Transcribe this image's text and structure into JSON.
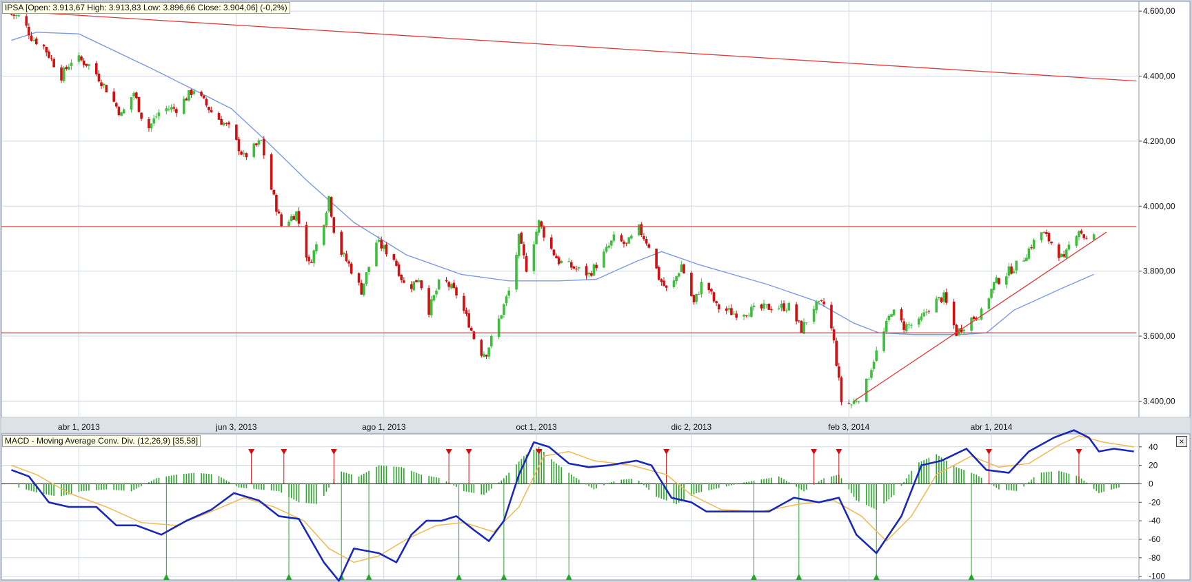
{
  "price_panel": {
    "label_text": "IPSA [Open: 3.913,67  High: 3.913,83  Low: 3.896,66  Close: 3.904,06] (-0,2%)"
  },
  "macd_panel": {
    "label_text": "MACD - Moving Average Conv. Div. (12,26,9) [35,58]",
    "close_symbol": "×"
  },
  "colors": {
    "up_candle": "#3dbf3d",
    "down_candle": "#d01010",
    "moving_average": "#7a9ae6",
    "trend_lines": "#e03a3a",
    "macd_line": "#1a28b8",
    "signal_line": "#f0b850",
    "histogram": "#2aa52a",
    "sell_marker": "#d01010",
    "buy_marker": "#22aa22",
    "grid": "#cfd6e3"
  },
  "chart_data": [
    {
      "type": "candlestick",
      "title": "IPSA",
      "y_axis_side": "right",
      "ylim": [
        3350,
        4630
      ],
      "y_ticks": [
        3400,
        3600,
        3800,
        4000,
        4200,
        4400,
        4600
      ],
      "y_tick_labels": [
        "3.400,00",
        "3.600,00",
        "3.800,00",
        "4.000,00",
        "4.200,00",
        "4.400,00",
        "4.600,00"
      ],
      "x_ticks": [
        {
          "date": "2013-04-01",
          "label": "abr 1, 2013"
        },
        {
          "date": "2013-06-03",
          "label": "jun 3, 2013"
        },
        {
          "date": "2013-08-01",
          "label": "ago 1, 2013"
        },
        {
          "date": "2013-10-01",
          "label": "oct 1, 2013"
        },
        {
          "date": "2013-12-02",
          "label": "dic 2, 2013"
        },
        {
          "date": "2014-02-03",
          "label": "feb 3, 2014"
        },
        {
          "date": "2014-04-01",
          "label": "abr 1, 2014"
        }
      ],
      "xlim": [
        "2013-03-01",
        "2014-05-30"
      ],
      "close_path": [
        [
          "2013-03-05",
          4590
        ],
        [
          "2013-03-09",
          4580
        ],
        [
          "2013-03-13",
          4520
        ],
        [
          "2013-03-18",
          4490
        ],
        [
          "2013-03-25",
          4400
        ],
        [
          "2013-03-30",
          4460
        ],
        [
          "2013-04-06",
          4430
        ],
        [
          "2013-04-12",
          4360
        ],
        [
          "2013-04-18",
          4280
        ],
        [
          "2013-04-23",
          4350
        ],
        [
          "2013-04-28",
          4230
        ],
        [
          "2013-05-04",
          4300
        ],
        [
          "2013-05-10",
          4300
        ],
        [
          "2013-05-17",
          4360
        ],
        [
          "2013-05-24",
          4290
        ],
        [
          "2013-05-31",
          4240
        ],
        [
          "2013-06-06",
          4150
        ],
        [
          "2013-06-13",
          4200
        ],
        [
          "2013-06-16",
          4080
        ],
        [
          "2013-06-21",
          3940
        ],
        [
          "2013-06-27",
          3980
        ],
        [
          "2013-07-02",
          3820
        ],
        [
          "2013-07-07",
          3920
        ],
        [
          "2013-07-10",
          4030
        ],
        [
          "2013-07-13",
          3880
        ],
        [
          "2013-07-18",
          3820
        ],
        [
          "2013-07-23",
          3740
        ],
        [
          "2013-07-29",
          3890
        ],
        [
          "2013-08-05",
          3840
        ],
        [
          "2013-08-10",
          3740
        ],
        [
          "2013-08-15",
          3780
        ],
        [
          "2013-08-19",
          3680
        ],
        [
          "2013-08-24",
          3780
        ],
        [
          "2013-08-30",
          3730
        ],
        [
          "2013-09-04",
          3640
        ],
        [
          "2013-09-08",
          3550
        ],
        [
          "2013-09-11",
          3550
        ],
        [
          "2013-09-16",
          3650
        ],
        [
          "2013-09-21",
          3760
        ],
        [
          "2013-09-24",
          3900
        ],
        [
          "2013-09-27",
          3810
        ],
        [
          "2013-10-02",
          3950
        ],
        [
          "2013-10-06",
          3880
        ],
        [
          "2013-10-10",
          3830
        ],
        [
          "2013-10-16",
          3810
        ],
        [
          "2013-10-22",
          3790
        ],
        [
          "2013-10-27",
          3840
        ],
        [
          "2013-11-01",
          3900
        ],
        [
          "2013-11-06",
          3880
        ],
        [
          "2013-11-11",
          3930
        ],
        [
          "2013-11-15",
          3880
        ],
        [
          "2013-11-19",
          3780
        ],
        [
          "2013-11-23",
          3730
        ],
        [
          "2013-11-28",
          3820
        ],
        [
          "2013-12-03",
          3700
        ],
        [
          "2013-12-07",
          3780
        ],
        [
          "2013-12-12",
          3690
        ],
        [
          "2013-12-19",
          3670
        ],
        [
          "2013-12-27",
          3680
        ],
        [
          "2014-01-03",
          3690
        ],
        [
          "2014-01-10",
          3690
        ],
        [
          "2014-01-15",
          3620
        ],
        [
          "2014-01-20",
          3690
        ],
        [
          "2014-01-25",
          3700
        ],
        [
          "2014-01-28",
          3580
        ],
        [
          "2014-01-31",
          3400
        ],
        [
          "2014-02-04",
          3390
        ],
        [
          "2014-02-09",
          3430
        ],
        [
          "2014-02-13",
          3530
        ],
        [
          "2014-02-17",
          3610
        ],
        [
          "2014-02-20",
          3680
        ],
        [
          "2014-02-25",
          3630
        ],
        [
          "2014-03-03",
          3640
        ],
        [
          "2014-03-08",
          3700
        ],
        [
          "2014-03-13",
          3720
        ],
        [
          "2014-03-18",
          3610
        ],
        [
          "2014-03-23",
          3650
        ],
        [
          "2014-03-28",
          3670
        ],
        [
          "2014-04-02",
          3760
        ],
        [
          "2014-04-08",
          3800
        ],
        [
          "2014-04-13",
          3830
        ],
        [
          "2014-04-17",
          3880
        ],
        [
          "2014-04-21",
          3920
        ],
        [
          "2014-04-26",
          3880
        ],
        [
          "2014-04-30",
          3830
        ],
        [
          "2014-05-03",
          3900
        ],
        [
          "2014-05-06",
          3930
        ],
        [
          "2014-05-09",
          3895
        ],
        [
          "2014-05-12",
          3904
        ]
      ],
      "moving_average": [
        [
          "2013-03-05",
          4510
        ],
        [
          "2013-03-15",
          4535
        ],
        [
          "2013-04-01",
          4530
        ],
        [
          "2013-05-01",
          4420
        ],
        [
          "2013-06-01",
          4300
        ],
        [
          "2013-06-15",
          4200
        ],
        [
          "2013-07-01",
          4080
        ],
        [
          "2013-07-20",
          3950
        ],
        [
          "2013-08-10",
          3850
        ],
        [
          "2013-09-01",
          3790
        ],
        [
          "2013-09-20",
          3770
        ],
        [
          "2013-10-10",
          3770
        ],
        [
          "2013-10-25",
          3775
        ],
        [
          "2013-11-10",
          3830
        ],
        [
          "2013-11-20",
          3860
        ],
        [
          "2013-12-05",
          3820
        ],
        [
          "2014-01-01",
          3760
        ],
        [
          "2014-01-20",
          3710
        ],
        [
          "2014-02-05",
          3640
        ],
        [
          "2014-02-15",
          3610
        ],
        [
          "2014-03-01",
          3605
        ],
        [
          "2014-03-20",
          3605
        ],
        [
          "2014-03-30",
          3610
        ],
        [
          "2014-04-10",
          3680
        ],
        [
          "2014-04-30",
          3750
        ],
        [
          "2014-05-12",
          3790
        ]
      ],
      "trend_lines": [
        {
          "from": [
            "2013-03-05",
            4600
          ],
          "to": [
            "2014-05-29",
            4385
          ]
        },
        {
          "from": [
            "2013-03-01",
            3937
          ],
          "to": [
            "2014-05-29",
            3937
          ]
        },
        {
          "from": [
            "2013-03-01",
            3610
          ],
          "to": [
            "2014-05-29",
            3610
          ]
        },
        {
          "from": [
            "2014-02-05",
            3400
          ],
          "to": [
            "2014-05-17",
            3920
          ]
        }
      ]
    },
    {
      "type": "macd",
      "title": "MACD - Moving Average Conv. Div. (12,26,9)",
      "ylim": [
        -104,
        54
      ],
      "y_ticks": [
        -100,
        -80,
        -60,
        -40,
        -20,
        0,
        20,
        40
      ],
      "y_tick_labels": [
        "-100",
        "-80",
        "-60",
        "-40",
        "-20",
        "0",
        "20",
        "40"
      ],
      "macd": [
        [
          "2013-03-05",
          15
        ],
        [
          "2013-03-12",
          8
        ],
        [
          "2013-03-20",
          -20
        ],
        [
          "2013-03-28",
          -25
        ],
        [
          "2013-04-08",
          -25
        ],
        [
          "2013-04-16",
          -45
        ],
        [
          "2013-04-24",
          -45
        ],
        [
          "2013-05-04",
          -55
        ],
        [
          "2013-05-14",
          -40
        ],
        [
          "2013-05-24",
          -28
        ],
        [
          "2013-06-02",
          -10
        ],
        [
          "2013-06-12",
          -18
        ],
        [
          "2013-06-20",
          -35
        ],
        [
          "2013-06-28",
          -38
        ],
        [
          "2013-07-08",
          -85
        ],
        [
          "2013-07-14",
          -105
        ],
        [
          "2013-07-20",
          -70
        ],
        [
          "2013-07-30",
          -75
        ],
        [
          "2013-08-06",
          -85
        ],
        [
          "2013-08-12",
          -55
        ],
        [
          "2013-08-18",
          -40
        ],
        [
          "2013-08-24",
          -40
        ],
        [
          "2013-08-30",
          -35
        ],
        [
          "2013-09-06",
          -50
        ],
        [
          "2013-09-12",
          -62
        ],
        [
          "2013-09-18",
          -40
        ],
        [
          "2013-09-24",
          10
        ],
        [
          "2013-09-30",
          45
        ],
        [
          "2013-10-06",
          40
        ],
        [
          "2013-10-14",
          22
        ],
        [
          "2013-10-22",
          18
        ],
        [
          "2013-10-30",
          20
        ],
        [
          "2013-11-10",
          25
        ],
        [
          "2013-11-16",
          20
        ],
        [
          "2013-11-24",
          -15
        ],
        [
          "2013-12-02",
          -20
        ],
        [
          "2013-12-08",
          -30
        ],
        [
          "2013-12-20",
          -30
        ],
        [
          "2014-01-02",
          -30
        ],
        [
          "2014-01-12",
          -15
        ],
        [
          "2014-01-22",
          -20
        ],
        [
          "2014-01-30",
          -15
        ],
        [
          "2014-02-06",
          -55
        ],
        [
          "2014-02-14",
          -75
        ],
        [
          "2014-02-24",
          -35
        ],
        [
          "2014-03-04",
          20
        ],
        [
          "2014-03-12",
          25
        ],
        [
          "2014-03-22",
          38
        ],
        [
          "2014-03-30",
          15
        ],
        [
          "2014-04-08",
          12
        ],
        [
          "2014-04-16",
          35
        ],
        [
          "2014-04-26",
          50
        ],
        [
          "2014-05-04",
          58
        ],
        [
          "2014-05-10",
          50
        ],
        [
          "2014-05-14",
          35
        ],
        [
          "2014-05-20",
          38
        ],
        [
          "2014-05-28",
          35
        ]
      ],
      "signal": [
        [
          "2013-03-05",
          20
        ],
        [
          "2013-03-15",
          10
        ],
        [
          "2013-03-28",
          -10
        ],
        [
          "2013-04-12",
          -25
        ],
        [
          "2013-04-26",
          -42
        ],
        [
          "2013-05-10",
          -45
        ],
        [
          "2013-05-24",
          -30
        ],
        [
          "2013-06-06",
          -15
        ],
        [
          "2013-06-18",
          -25
        ],
        [
          "2013-06-30",
          -40
        ],
        [
          "2013-07-10",
          -70
        ],
        [
          "2013-07-20",
          -85
        ],
        [
          "2013-07-30",
          -78
        ],
        [
          "2013-08-10",
          -60
        ],
        [
          "2013-08-22",
          -45
        ],
        [
          "2013-09-02",
          -42
        ],
        [
          "2013-09-14",
          -52
        ],
        [
          "2013-09-24",
          -25
        ],
        [
          "2013-10-04",
          30
        ],
        [
          "2013-10-14",
          35
        ],
        [
          "2013-10-24",
          25
        ],
        [
          "2013-11-08",
          20
        ],
        [
          "2013-11-22",
          10
        ],
        [
          "2013-12-02",
          -12
        ],
        [
          "2013-12-14",
          -28
        ],
        [
          "2013-12-30",
          -30
        ],
        [
          "2014-01-14",
          -22
        ],
        [
          "2014-01-28",
          -18
        ],
        [
          "2014-02-08",
          -35
        ],
        [
          "2014-02-18",
          -62
        ],
        [
          "2014-02-28",
          -35
        ],
        [
          "2014-03-10",
          10
        ],
        [
          "2014-03-24",
          30
        ],
        [
          "2014-04-04",
          18
        ],
        [
          "2014-04-16",
          22
        ],
        [
          "2014-04-28",
          42
        ],
        [
          "2014-05-06",
          52
        ],
        [
          "2014-05-16",
          45
        ],
        [
          "2014-05-28",
          40
        ]
      ],
      "histogram": [
        [
          "2013-03-08",
          -4
        ],
        [
          "2013-03-16",
          -10
        ],
        [
          "2013-03-24",
          -14
        ],
        [
          "2013-04-02",
          -8
        ],
        [
          "2013-04-12",
          -6
        ],
        [
          "2013-04-22",
          -8
        ],
        [
          "2013-05-02",
          6
        ],
        [
          "2013-05-10",
          10
        ],
        [
          "2013-05-18",
          12
        ],
        [
          "2013-05-26",
          10
        ],
        [
          "2013-06-04",
          -4
        ],
        [
          "2013-06-12",
          -6
        ],
        [
          "2013-06-20",
          -8
        ],
        [
          "2013-06-28",
          -20
        ],
        [
          "2013-07-06",
          -22
        ],
        [
          "2013-07-14",
          14
        ],
        [
          "2013-07-22",
          8
        ],
        [
          "2013-07-30",
          20
        ],
        [
          "2013-08-08",
          18
        ],
        [
          "2013-08-16",
          10
        ],
        [
          "2013-08-24",
          6
        ],
        [
          "2013-09-02",
          -8
        ],
        [
          "2013-09-10",
          -12
        ],
        [
          "2013-09-18",
          6
        ],
        [
          "2013-09-26",
          30
        ],
        [
          "2013-10-02",
          40
        ],
        [
          "2013-10-08",
          24
        ],
        [
          "2013-10-16",
          8
        ],
        [
          "2013-10-24",
          -6
        ],
        [
          "2013-11-02",
          4
        ],
        [
          "2013-11-10",
          6
        ],
        [
          "2013-11-18",
          -14
        ],
        [
          "2013-11-26",
          -22
        ],
        [
          "2013-12-04",
          -10
        ],
        [
          "2013-12-14",
          -4
        ],
        [
          "2013-12-24",
          2
        ],
        [
          "2014-01-06",
          8
        ],
        [
          "2014-01-16",
          -8
        ],
        [
          "2014-01-24",
          6
        ],
        [
          "2014-01-30",
          10
        ],
        [
          "2014-02-06",
          -18
        ],
        [
          "2014-02-14",
          -28
        ],
        [
          "2014-02-22",
          -10
        ],
        [
          "2014-03-02",
          22
        ],
        [
          "2014-03-10",
          32
        ],
        [
          "2014-03-18",
          18
        ],
        [
          "2014-03-26",
          10
        ],
        [
          "2014-04-04",
          -6
        ],
        [
          "2014-04-12",
          -8
        ],
        [
          "2014-04-20",
          12
        ],
        [
          "2014-04-28",
          14
        ],
        [
          "2014-05-06",
          8
        ],
        [
          "2014-05-14",
          -10
        ],
        [
          "2014-05-22",
          -4
        ]
      ],
      "sell_signals": [
        "2013-06-09",
        "2013-06-22",
        "2013-07-12",
        "2013-08-27",
        "2013-09-04",
        "2013-10-02",
        "2013-11-22",
        "2014-01-20",
        "2014-01-30",
        "2014-03-31",
        "2014-05-06"
      ],
      "buy_signals": [
        "2013-05-06",
        "2013-06-24",
        "2013-07-15",
        "2013-07-26",
        "2013-08-31",
        "2013-09-18",
        "2013-10-14",
        "2013-12-27",
        "2014-01-14",
        "2014-02-14",
        "2014-03-24"
      ]
    }
  ]
}
